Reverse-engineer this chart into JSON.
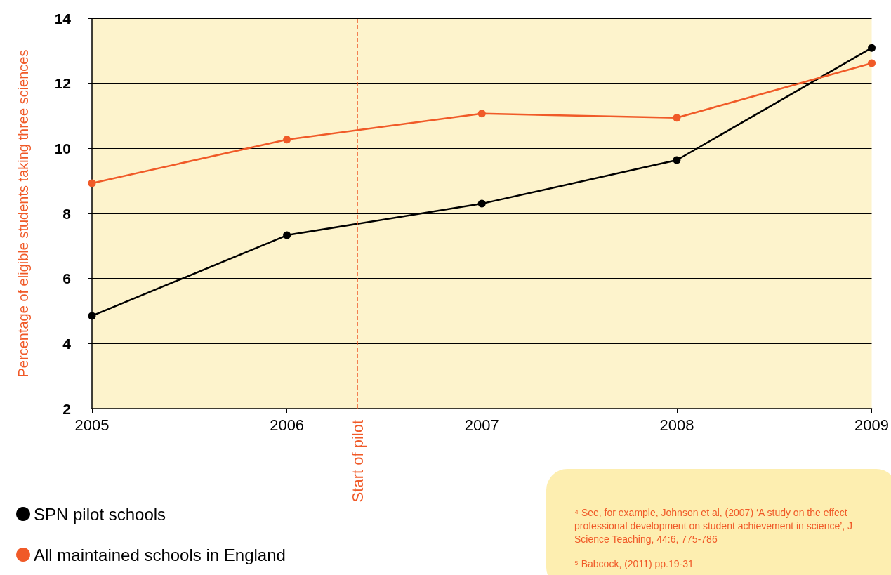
{
  "chart_data": {
    "type": "line",
    "ylabel": "Percentage of eligible students taking three sciences",
    "x": [
      2005,
      2006,
      2007,
      2008,
      2009
    ],
    "series": [
      {
        "name": "SPN pilot schools",
        "color": "#000000",
        "values": [
          4.85,
          7.33,
          8.3,
          9.64,
          13.09
        ]
      },
      {
        "name": "All maintained schools in England",
        "color": "#f05a28",
        "values": [
          8.93,
          10.27,
          11.07,
          10.94,
          12.62
        ]
      }
    ],
    "xlim": [
      2005,
      2009
    ],
    "xticks": [
      2005,
      2006,
      2007,
      2008,
      2009
    ],
    "ylim": [
      2,
      14
    ],
    "yticks": [
      2,
      4,
      6,
      8,
      10,
      12,
      14
    ],
    "ref_lines": [
      {
        "axis": "x",
        "value": 2006.36,
        "label": "Start of pilot",
        "color": "#f05a28",
        "line_style": "dashed"
      }
    ],
    "annotations": [
      "⁴ See, for example, Johnson et al, (2007) ‘A study on the effect\nprofessional development on student achievement in science’, J\nScience Teaching, 44:6, 775-786",
      "⁵ Babcock, (2011) pp.19-31"
    ],
    "grid": "y",
    "legend": "bottom left",
    "marker": "circle",
    "line_style": "solid"
  }
}
